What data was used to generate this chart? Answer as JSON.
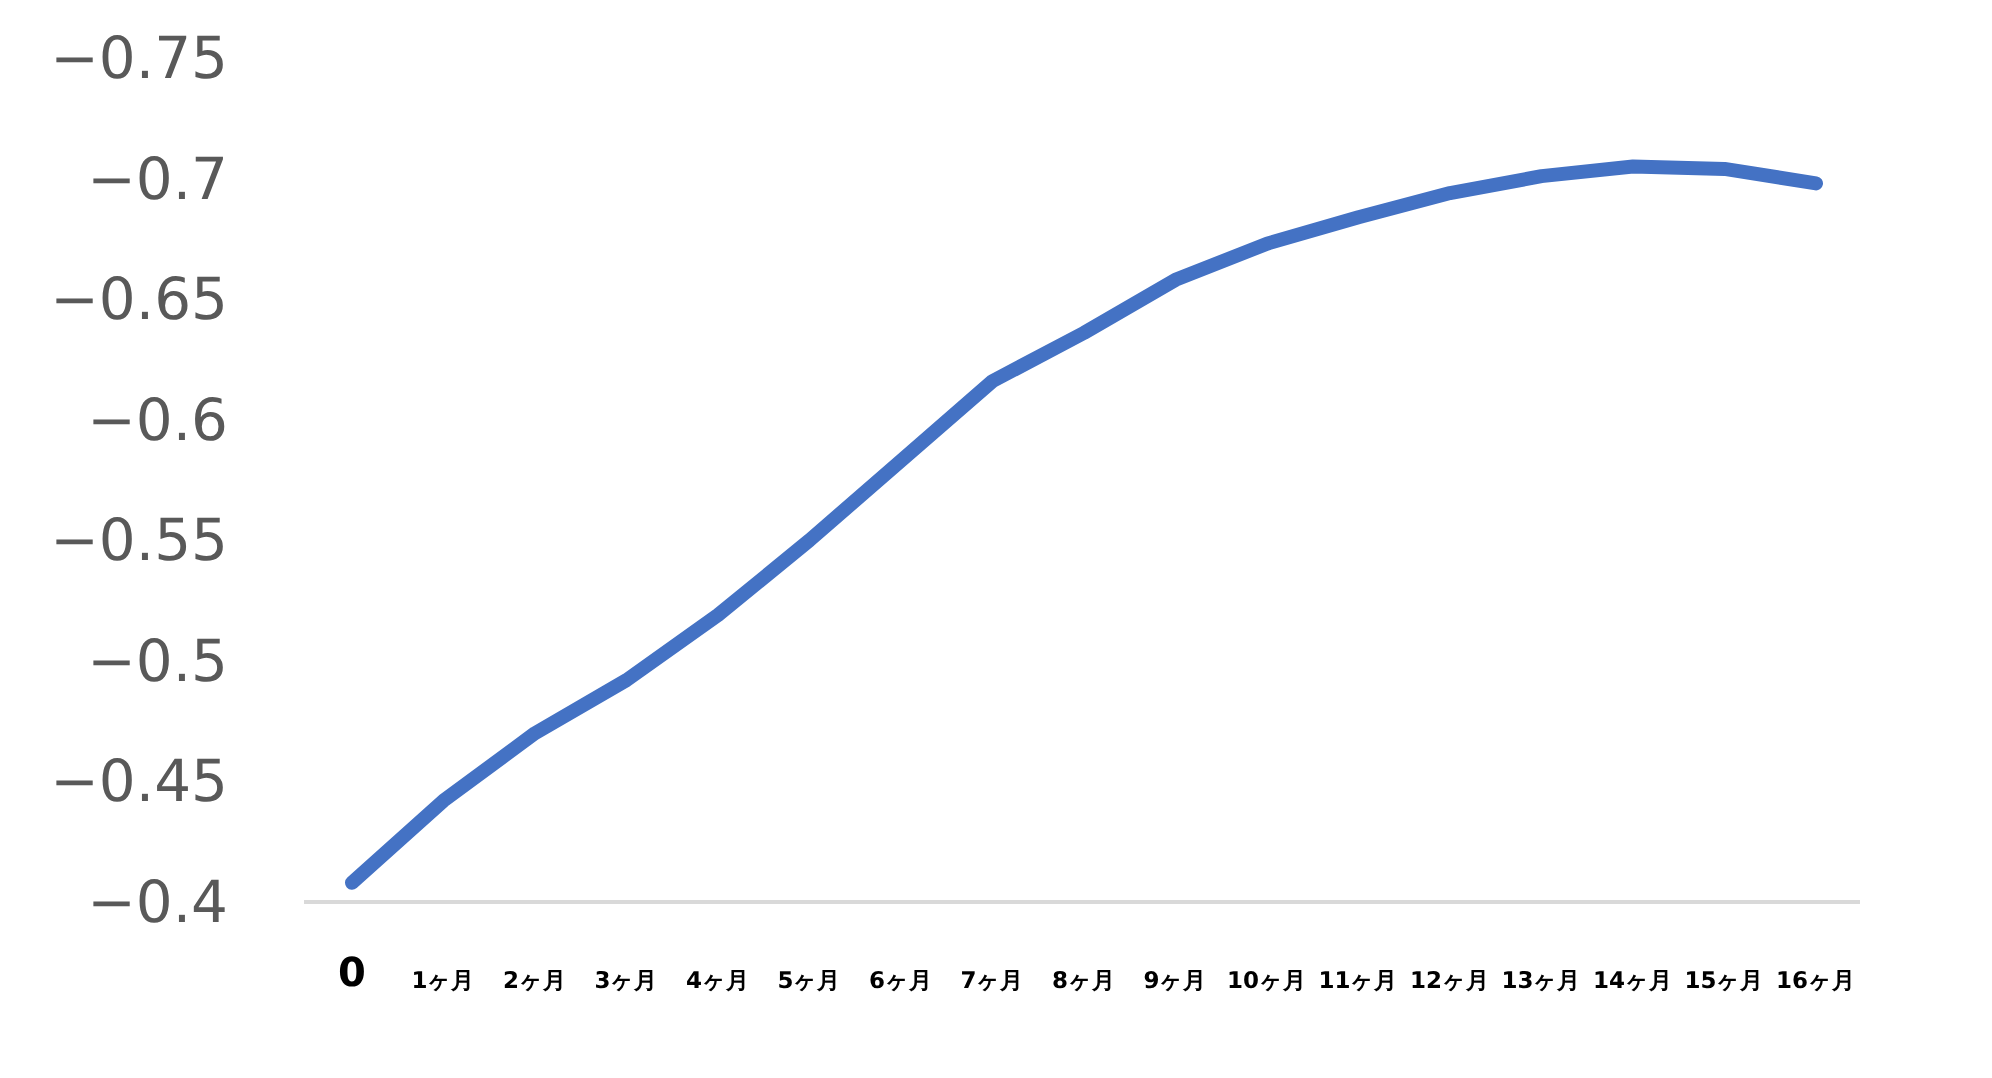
{
  "chart_data": {
    "type": "line",
    "categories": [
      "0",
      "1ヶ月",
      "2ヶ月",
      "3ヶ月",
      "4ヶ月",
      "5ヶ月",
      "6ヶ月",
      "7ヶ月",
      "8ヶ月",
      "9ヶ月",
      "10ヶ月",
      "11ヶ月",
      "12ヶ月",
      "13ヶ月",
      "14ヶ月",
      "15ヶ月",
      "16ヶ月"
    ],
    "series": [
      {
        "color": "#4472c4",
        "values": [
          -0.408,
          -0.442,
          -0.47,
          -0.492,
          -0.519,
          -0.55,
          -0.583,
          -0.616,
          -0.636,
          -0.658,
          -0.673,
          -0.684,
          -0.694,
          -0.701,
          -0.705,
          -0.704,
          -0.698
        ]
      }
    ],
    "ylim": [
      -0.4,
      -0.75
    ],
    "yticks": [
      -0.4,
      -0.45,
      -0.5,
      -0.55,
      -0.6,
      -0.65,
      -0.7,
      -0.75
    ]
  }
}
